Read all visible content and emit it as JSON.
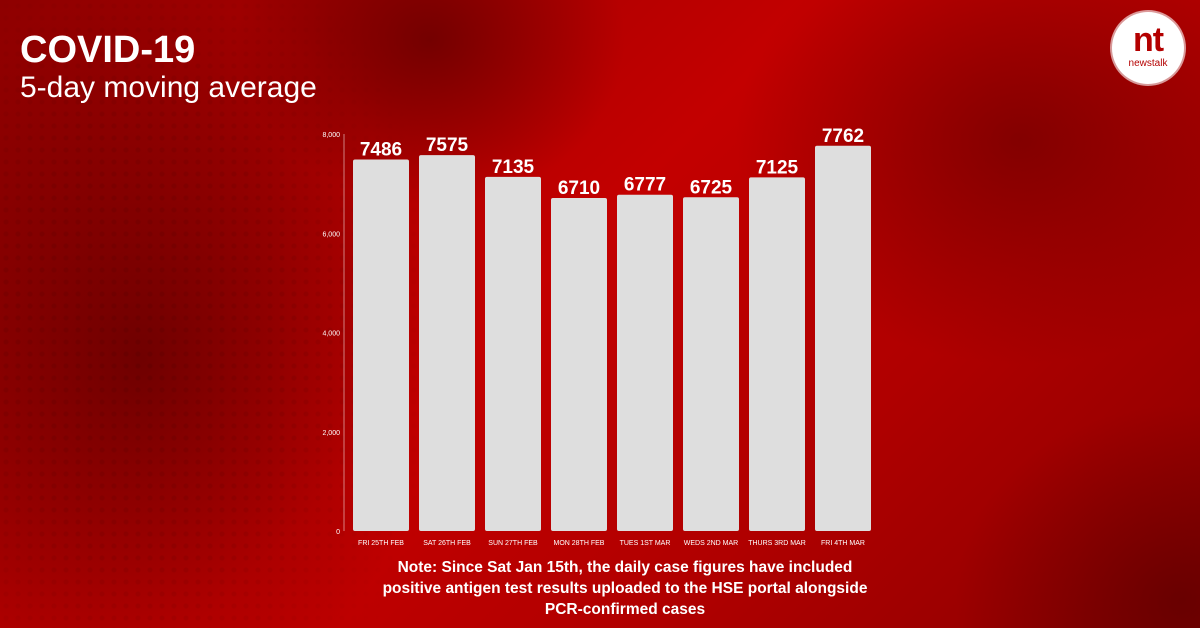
{
  "header": {
    "title": "COVID-19",
    "subtitle": "5-day moving average"
  },
  "logo": {
    "mark": "nt",
    "wordmark": "newstalk"
  },
  "note": "Note: Since Sat Jan 15th, the daily case figures have included positive antigen test results uploaded to the HSE portal alongside PCR-confirmed cases",
  "colors": {
    "bar": "#dedede",
    "background": "#b00000",
    "text": "#ffffff"
  },
  "chart_data": {
    "type": "bar",
    "title": "COVID-19",
    "subtitle": "5-day moving average",
    "xlabel": "",
    "ylabel": "",
    "categories": [
      "FRI 25TH FEB",
      "SAT 26TH FEB",
      "SUN 27TH FEB",
      "MON 28TH FEB",
      "TUES 1ST MAR",
      "WEDS 2ND MAR",
      "THURS 3RD MAR",
      "FRI 4TH MAR"
    ],
    "values": [
      7486,
      7575,
      7135,
      6710,
      6777,
      6725,
      7125,
      7762
    ],
    "data_labels": [
      "7486",
      "7575",
      "7135",
      "6710",
      "6777",
      "6725",
      "7125",
      "7762"
    ],
    "ylim": [
      0,
      8000
    ],
    "yticks": [
      0,
      2000,
      4000,
      6000,
      8000
    ],
    "ytick_labels": [
      "0",
      "2,000",
      "4,000",
      "6,000",
      "8,000"
    ],
    "grid": false,
    "legend": "none"
  }
}
